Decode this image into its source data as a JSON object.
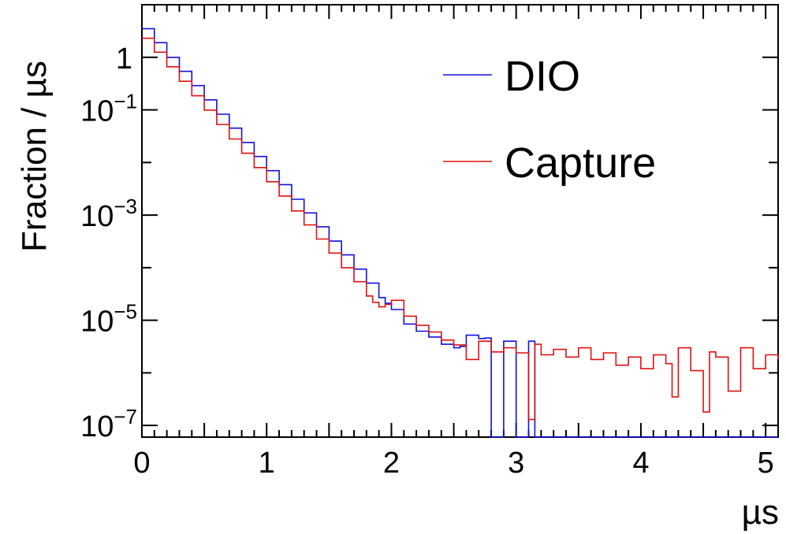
{
  "chart_data": {
    "type": "line",
    "xlabel": "µs",
    "ylabel": "Fraction / µs",
    "xlim": [
      0,
      5.1
    ],
    "ylim": [
      6e-08,
      10
    ],
    "yscale": "log",
    "x_ticks": [
      {
        "value": 0,
        "label": "0"
      },
      {
        "value": 1,
        "label": "1"
      },
      {
        "value": 2,
        "label": "2"
      },
      {
        "value": 3,
        "label": "3"
      },
      {
        "value": 4,
        "label": "4"
      },
      {
        "value": 5,
        "label": "5"
      }
    ],
    "y_ticks": [
      {
        "value": 1,
        "base": "1",
        "exp": ""
      },
      {
        "value": 0.1,
        "base": "10",
        "exp": "−1"
      },
      {
        "value": 0.001,
        "base": "10",
        "exp": "−3"
      },
      {
        "value": 1e-05,
        "base": "10",
        "exp": "−5"
      },
      {
        "value": 1e-07,
        "base": "10",
        "exp": "−7"
      }
    ],
    "legend_position": "top-right",
    "series": [
      {
        "name": "DIO",
        "color": "#1010e0",
        "points": [
          [
            0.0,
            3.5
          ],
          [
            0.1,
            1.9
          ],
          [
            0.2,
            1.0
          ],
          [
            0.3,
            0.54
          ],
          [
            0.4,
            0.29
          ],
          [
            0.5,
            0.155
          ],
          [
            0.6,
            0.083
          ],
          [
            0.7,
            0.045
          ],
          [
            0.8,
            0.024
          ],
          [
            0.9,
            0.013
          ],
          [
            1.0,
            0.007
          ],
          [
            1.1,
            0.0038
          ],
          [
            1.2,
            0.002
          ],
          [
            1.3,
            0.0011
          ],
          [
            1.4,
            0.0006
          ],
          [
            1.5,
            0.00032
          ],
          [
            1.6,
            0.000175
          ],
          [
            1.7,
            9.4e-05
          ],
          [
            1.8,
            5.1e-05
          ],
          [
            1.9,
            2.7e-05
          ],
          [
            1.95,
            2.1e-05
          ],
          [
            2.0,
            1.6e-05
          ],
          [
            2.1,
            8.5e-06
          ],
          [
            2.2,
            6.2e-06
          ],
          [
            2.3,
            4.8e-06
          ],
          [
            2.4,
            3.5e-06
          ],
          [
            2.5,
            3e-06
          ],
          [
            2.55,
            3.2e-06
          ],
          [
            2.6,
            5.2e-06
          ],
          [
            2.7,
            4.5e-06
          ],
          [
            2.75,
            4.6e-06
          ],
          [
            2.8,
            6e-08
          ],
          [
            2.9,
            4e-06
          ],
          [
            3.0,
            6e-08
          ],
          [
            3.05,
            6e-08
          ],
          [
            3.1,
            4e-06
          ],
          [
            3.15,
            6e-08
          ],
          [
            3.2,
            6e-08
          ],
          [
            4.0,
            6e-08
          ],
          [
            5.1,
            6e-08
          ]
        ]
      },
      {
        "name": "Capture",
        "color": "#e01010",
        "points": [
          [
            0.0,
            2.3
          ],
          [
            0.1,
            1.25
          ],
          [
            0.2,
            0.66
          ],
          [
            0.3,
            0.35
          ],
          [
            0.4,
            0.186
          ],
          [
            0.5,
            0.099
          ],
          [
            0.6,
            0.053
          ],
          [
            0.7,
            0.028
          ],
          [
            0.8,
            0.015
          ],
          [
            0.9,
            0.008
          ],
          [
            1.0,
            0.0043
          ],
          [
            1.1,
            0.0023
          ],
          [
            1.2,
            0.0012
          ],
          [
            1.3,
            0.00065
          ],
          [
            1.4,
            0.00035
          ],
          [
            1.5,
            0.00019
          ],
          [
            1.6,
            0.0001
          ],
          [
            1.7,
            5.4e-05
          ],
          [
            1.8,
            2.9e-05
          ],
          [
            1.85,
            2.2e-05
          ],
          [
            1.9,
            1.8e-05
          ],
          [
            1.95,
            2e-05
          ],
          [
            2.0,
            2.4e-05
          ],
          [
            2.1,
            1.2e-05
          ],
          [
            2.2,
            8e-06
          ],
          [
            2.3,
            6e-06
          ],
          [
            2.4,
            4.2e-06
          ],
          [
            2.5,
            3.4e-06
          ],
          [
            2.6,
            1.8e-06
          ],
          [
            2.7,
            4e-06
          ],
          [
            2.8,
            2.5e-06
          ],
          [
            2.9,
            3e-06
          ],
          [
            3.0,
            2.4e-06
          ],
          [
            3.1,
            1.3e-07
          ],
          [
            3.15,
            3.5e-06
          ],
          [
            3.2,
            2.2e-06
          ],
          [
            3.3,
            2.8e-06
          ],
          [
            3.4,
            2e-06
          ],
          [
            3.5,
            3e-06
          ],
          [
            3.6,
            1.8e-06
          ],
          [
            3.7,
            2.4e-06
          ],
          [
            3.8,
            1.4e-06
          ],
          [
            3.9,
            2e-06
          ],
          [
            4.0,
            1.2e-06
          ],
          [
            4.1,
            2.2e-06
          ],
          [
            4.2,
            1.5e-06
          ],
          [
            4.25,
            3.5e-07
          ],
          [
            4.3,
            3e-06
          ],
          [
            4.4,
            1.1e-06
          ],
          [
            4.5,
            1.8e-07
          ],
          [
            4.55,
            2.5e-06
          ],
          [
            4.6,
            2e-06
          ],
          [
            4.7,
            4.5e-07
          ],
          [
            4.8,
            3e-06
          ],
          [
            4.9,
            1.2e-06
          ],
          [
            5.0,
            2.2e-06
          ],
          [
            5.1,
            1.8e-06
          ]
        ]
      }
    ]
  }
}
